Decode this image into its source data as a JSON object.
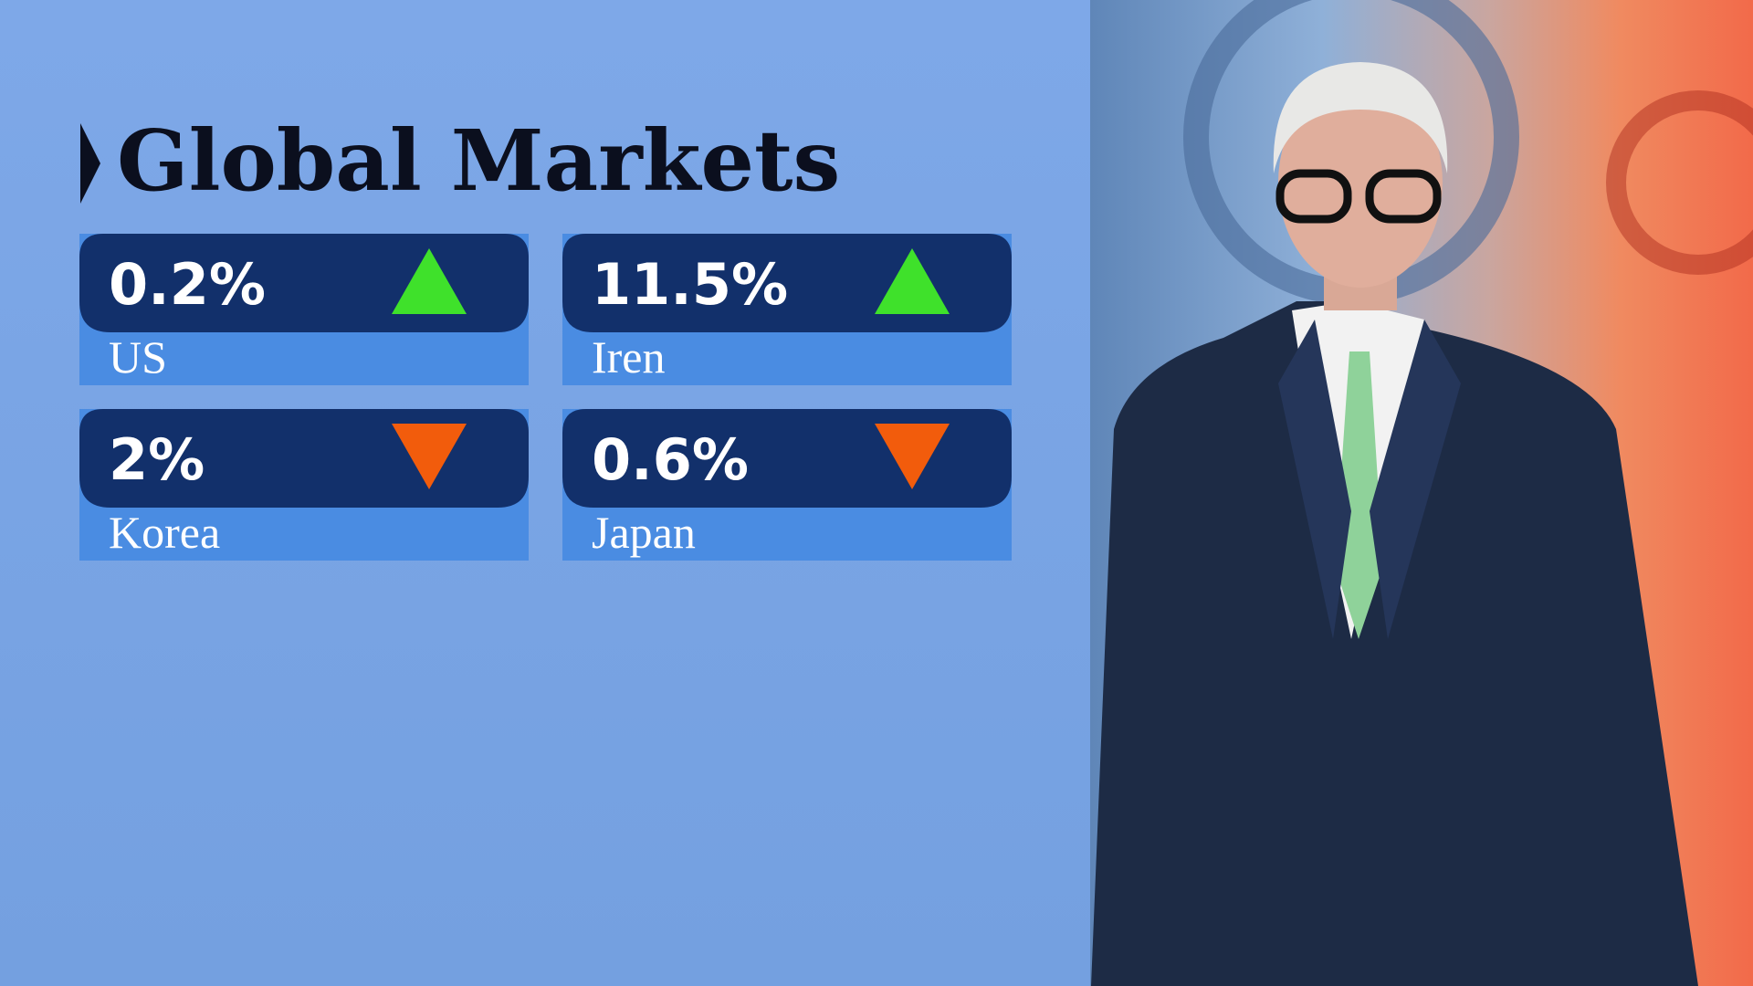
{
  "header": {
    "title": "Global Markets"
  },
  "cards": [
    {
      "value": "0.2%",
      "label": "US",
      "direction": "up"
    },
    {
      "value": "11.5%",
      "label": "Iren",
      "direction": "up"
    },
    {
      "value": "2%",
      "label": "Korea",
      "direction": "down"
    },
    {
      "value": "0.6%",
      "label": "Japan",
      "direction": "down"
    }
  ]
}
